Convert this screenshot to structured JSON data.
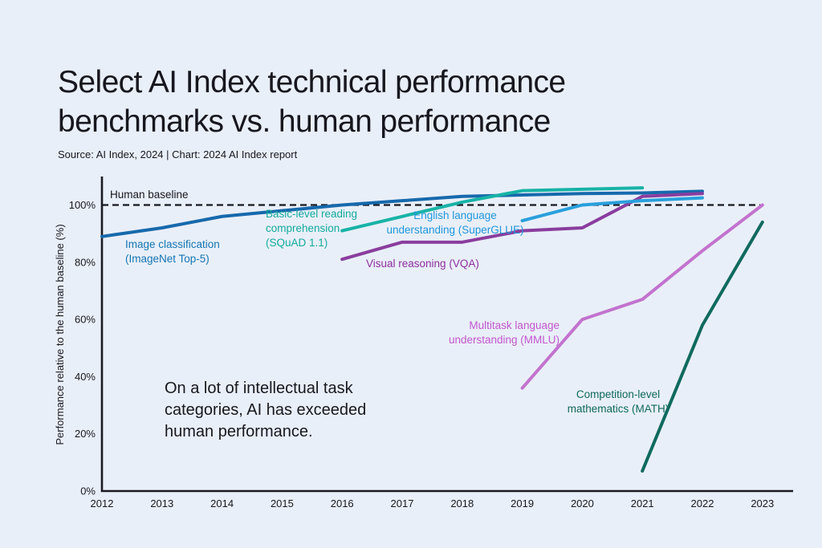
{
  "header": {
    "title_lines": [
      "Select AI Index technical performance",
      "benchmarks vs. human performance"
    ],
    "source": "Source: AI Index, 2024 | Chart: 2024 AI Index report"
  },
  "colors": {
    "background": "#e9eff8",
    "text": "#17171f",
    "axis": "#1a1a22"
  },
  "chart_data": {
    "type": "line",
    "title": "Select AI Index technical performance benchmarks vs. human performance",
    "xlabel": "",
    "ylabel": "Performance relative to the human baseline (%)",
    "xlim": [
      2012,
      2023
    ],
    "ylim": [
      0,
      108
    ],
    "grid": false,
    "legend_position": "inline-labels",
    "x_ticks": [
      "2012",
      "2013",
      "2014",
      "2015",
      "2016",
      "2017",
      "2018",
      "2019",
      "2020",
      "2021",
      "2022",
      "2023"
    ],
    "y_ticks": [
      {
        "value": 0,
        "label": "0%"
      },
      {
        "value": 20,
        "label": "20%"
      },
      {
        "value": 40,
        "label": "40%"
      },
      {
        "value": 60,
        "label": "60%"
      },
      {
        "value": 80,
        "label": "80%"
      },
      {
        "value": 100,
        "label": "100%"
      }
    ],
    "human_baseline": {
      "label": "Human baseline",
      "value": 100
    },
    "annotation_lines": [
      "On a lot of intellectual task",
      "categories, AI has exceeded",
      "human performance."
    ],
    "series": [
      {
        "name": "Image classification (ImageNet Top-5)",
        "label_lines": [
          "Image classification",
          "(ImageNet Top-5)"
        ],
        "color": "#1669ac",
        "label_color": "#1576b3",
        "years": [
          2012,
          2013,
          2014,
          2015,
          2016,
          2017,
          2018,
          2019,
          2020,
          2021,
          2022
        ],
        "values": [
          89,
          92,
          96,
          98,
          100,
          101.5,
          103,
          103.5,
          104,
          104.2,
          104.8
        ]
      },
      {
        "name": "Basic-level reading comprehension (SQuAD 1.1)",
        "label_lines": [
          "Basic-level reading",
          "comprehension",
          "(SQuAD 1.1)"
        ],
        "color": "#17b3a6",
        "label_color": "#12ab9e",
        "years": [
          2016,
          2017,
          2018,
          2019,
          2020,
          2021
        ],
        "values": [
          91,
          96,
          101,
          105,
          105.5,
          106
        ]
      },
      {
        "name": "Visual reasoning (VQA)",
        "label_lines": [
          "Visual reasoning (VQA)"
        ],
        "color": "#8a3d9e",
        "label_color": "#8d2f9f",
        "years": [
          2016,
          2017,
          2018,
          2019,
          2020,
          2021,
          2022
        ],
        "values": [
          81,
          87,
          87,
          91,
          92,
          103,
          104
        ]
      },
      {
        "name": "English language understanding (SuperGLUE)",
        "label_lines": [
          "English language",
          "understanding (SuperGLUE)"
        ],
        "color": "#29a0dc",
        "label_color": "#1f97dc",
        "years": [
          2019,
          2020,
          2021,
          2022
        ],
        "values": [
          94.5,
          100,
          101.5,
          102.5
        ]
      },
      {
        "name": "Multitask language understanding (MMLU)",
        "label_lines": [
          "Multitask language",
          "understanding (MMLU)"
        ],
        "color": "#c273ce",
        "label_color": "#c356cf",
        "years": [
          2019,
          2020,
          2021,
          2022,
          2023
        ],
        "values": [
          36,
          60,
          67,
          84,
          100
        ]
      },
      {
        "name": "Competition-level mathematics (MATH)",
        "label_lines": [
          "Competition-level",
          "mathematics (MATH)"
        ],
        "color": "#0f6a5e",
        "label_color": "#0f695d",
        "years": [
          2021,
          2022,
          2023
        ],
        "values": [
          7,
          58,
          94
        ]
      }
    ]
  }
}
